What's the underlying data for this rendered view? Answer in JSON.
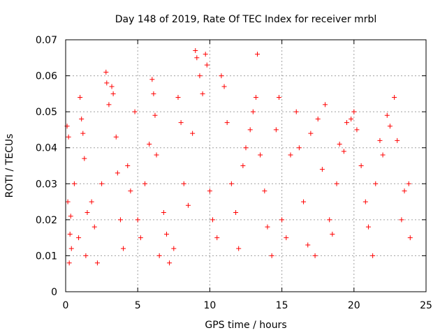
{
  "chart_data": {
    "type": "scatter",
    "title": "Day 148 of 2019, Rate Of TEC Index for receiver mrbl",
    "xlabel": "GPS time / hours",
    "ylabel": "ROTI / TECUs",
    "xlim": [
      0,
      25
    ],
    "ylim": [
      0,
      0.07
    ],
    "x_ticks": [
      0,
      5,
      10,
      15,
      20,
      25
    ],
    "y_ticks": [
      0,
      0.01,
      0.02,
      0.03,
      0.04,
      0.05,
      0.06,
      0.07
    ],
    "x_tick_labels": [
      "0",
      "5",
      "10",
      "15",
      "20",
      "25"
    ],
    "y_tick_labels": [
      "0",
      "0.01",
      "0.02",
      "0.03",
      "0.04",
      "0.05",
      "0.06",
      "0.07"
    ],
    "grid": true,
    "marker": "+",
    "color": "#ff0000",
    "series": [
      {
        "name": "ROTI",
        "points": [
          [
            0.1,
            0.046
          ],
          [
            0.2,
            0.043
          ],
          [
            0.15,
            0.025
          ],
          [
            0.3,
            0.016
          ],
          [
            0.25,
            0.008
          ],
          [
            0.4,
            0.012
          ],
          [
            0.35,
            0.021
          ],
          [
            0.6,
            0.03
          ],
          [
            0.9,
            0.015
          ],
          [
            1.0,
            0.054
          ],
          [
            1.1,
            0.048
          ],
          [
            1.2,
            0.044
          ],
          [
            1.3,
            0.037
          ],
          [
            1.4,
            0.01
          ],
          [
            1.5,
            0.022
          ],
          [
            1.8,
            0.025
          ],
          [
            2.0,
            0.018
          ],
          [
            2.2,
            0.008
          ],
          [
            2.5,
            0.03
          ],
          [
            2.8,
            0.061
          ],
          [
            2.85,
            0.058
          ],
          [
            3.0,
            0.052
          ],
          [
            3.2,
            0.057
          ],
          [
            3.3,
            0.055
          ],
          [
            3.5,
            0.043
          ],
          [
            3.6,
            0.033
          ],
          [
            3.8,
            0.02
          ],
          [
            4.0,
            0.012
          ],
          [
            4.3,
            0.035
          ],
          [
            4.5,
            0.028
          ],
          [
            4.8,
            0.05
          ],
          [
            5.0,
            0.02
          ],
          [
            5.2,
            0.015
          ],
          [
            5.5,
            0.03
          ],
          [
            5.8,
            0.041
          ],
          [
            6.0,
            0.059
          ],
          [
            6.1,
            0.055
          ],
          [
            6.2,
            0.049
          ],
          [
            6.3,
            0.038
          ],
          [
            6.5,
            0.01
          ],
          [
            6.8,
            0.022
          ],
          [
            7.0,
            0.016
          ],
          [
            7.2,
            0.008
          ],
          [
            7.5,
            0.012
          ],
          [
            7.8,
            0.054
          ],
          [
            8.0,
            0.047
          ],
          [
            8.2,
            0.03
          ],
          [
            8.5,
            0.024
          ],
          [
            8.8,
            0.044
          ],
          [
            9.0,
            0.067
          ],
          [
            9.1,
            0.065
          ],
          [
            9.3,
            0.06
          ],
          [
            9.5,
            0.055
          ],
          [
            9.7,
            0.066
          ],
          [
            9.8,
            0.063
          ],
          [
            10.0,
            0.028
          ],
          [
            10.2,
            0.02
          ],
          [
            10.5,
            0.015
          ],
          [
            10.8,
            0.06
          ],
          [
            11.0,
            0.057
          ],
          [
            11.2,
            0.047
          ],
          [
            11.5,
            0.03
          ],
          [
            11.8,
            0.022
          ],
          [
            12.0,
            0.012
          ],
          [
            12.3,
            0.035
          ],
          [
            12.5,
            0.04
          ],
          [
            12.8,
            0.045
          ],
          [
            13.0,
            0.05
          ],
          [
            13.2,
            0.054
          ],
          [
            13.3,
            0.066
          ],
          [
            13.5,
            0.038
          ],
          [
            13.8,
            0.028
          ],
          [
            14.0,
            0.018
          ],
          [
            14.3,
            0.01
          ],
          [
            14.6,
            0.045
          ],
          [
            14.8,
            0.054
          ],
          [
            15.0,
            0.02
          ],
          [
            15.3,
            0.015
          ],
          [
            15.6,
            0.038
          ],
          [
            16.0,
            0.05
          ],
          [
            16.2,
            0.04
          ],
          [
            16.5,
            0.025
          ],
          [
            16.8,
            0.013
          ],
          [
            17.0,
            0.044
          ],
          [
            17.3,
            0.01
          ],
          [
            17.5,
            0.048
          ],
          [
            17.8,
            0.034
          ],
          [
            18.0,
            0.052
          ],
          [
            18.3,
            0.02
          ],
          [
            18.5,
            0.016
          ],
          [
            18.8,
            0.03
          ],
          [
            19.0,
            0.041
          ],
          [
            19.3,
            0.039
          ],
          [
            19.5,
            0.047
          ],
          [
            19.8,
            0.048
          ],
          [
            20.0,
            0.05
          ],
          [
            20.2,
            0.045
          ],
          [
            20.5,
            0.035
          ],
          [
            20.8,
            0.025
          ],
          [
            21.0,
            0.018
          ],
          [
            21.3,
            0.01
          ],
          [
            21.5,
            0.03
          ],
          [
            21.8,
            0.042
          ],
          [
            22.0,
            0.038
          ],
          [
            22.3,
            0.049
          ],
          [
            22.5,
            0.046
          ],
          [
            22.8,
            0.054
          ],
          [
            23.0,
            0.042
          ],
          [
            23.3,
            0.02
          ],
          [
            23.5,
            0.028
          ],
          [
            23.8,
            0.03
          ],
          [
            23.9,
            0.015
          ]
        ]
      }
    ]
  }
}
